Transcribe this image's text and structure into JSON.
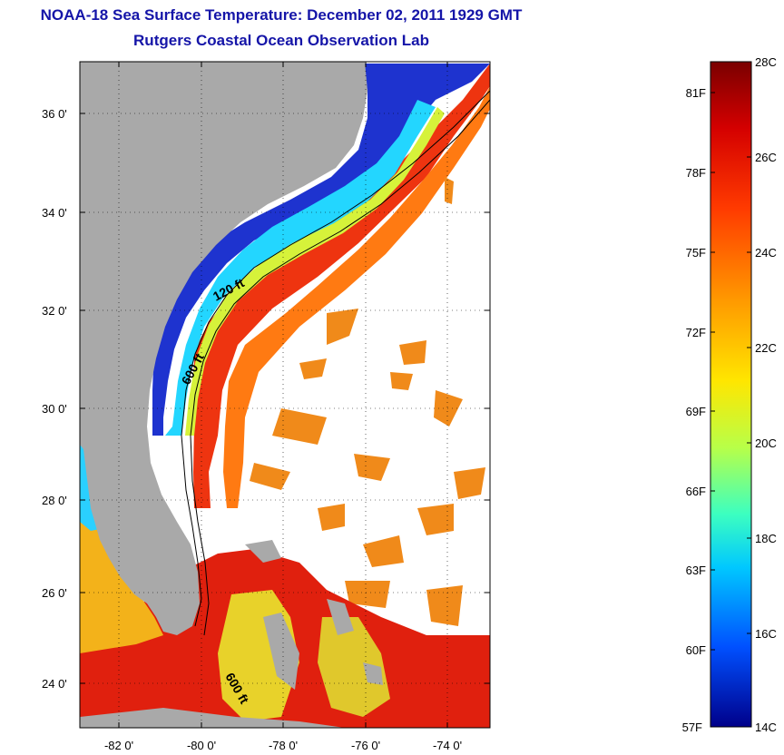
{
  "title": {
    "line1": "NOAA-18 Sea Surface Temperature:  December 02, 2011 1929 GMT",
    "line2": "Rutgers Coastal Ocean Observation Lab"
  },
  "map": {
    "x_ticks": [
      "-82 0'",
      "-80 0'",
      "-78 0'",
      "-76 0'",
      "-74 0'"
    ],
    "y_ticks": [
      "36 0'",
      "34 0'",
      "32 0'",
      "30 0'",
      "28 0'",
      "26 0'",
      "24 0'"
    ],
    "contour_labels": [
      "120 ft",
      "600 ft",
      "600 ft"
    ],
    "colors": {
      "land": "#a9a9a9",
      "cloud_mask": "#ffffff",
      "gulf_stream": "#e8300c",
      "cold_shelf": "#1f2fd0"
    }
  },
  "colorbar": {
    "celsius_labels": [
      "28C",
      "26C",
      "24C",
      "22C",
      "20C",
      "18C",
      "16C",
      "14C"
    ],
    "fahrenheit_labels": [
      "81F",
      "78F",
      "75F",
      "72F",
      "69F",
      "66F",
      "63F",
      "60F",
      "57F"
    ],
    "range_c": [
      14,
      28
    ],
    "colors": [
      "#800000",
      "#ff0000",
      "#ff8c00",
      "#ffff00",
      "#80ff80",
      "#00ffff",
      "#0080ff",
      "#0000ff",
      "#00008f"
    ]
  }
}
